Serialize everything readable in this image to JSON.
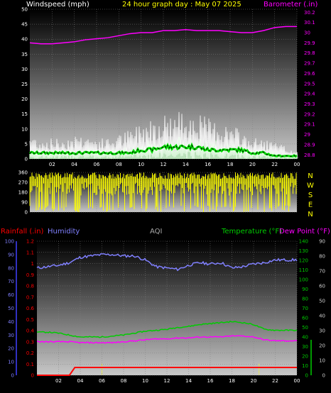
{
  "title": "24 hour graph day : May 07 2025",
  "colors": {
    "windspeed": "#ffffff",
    "wind_avg": "#00dd00",
    "wind_avg_dash": "#000000",
    "gust_fill": "#b6f0b6",
    "barometer": "#ff00ff",
    "direction": "#ffff00",
    "rainfall": "#ff0000",
    "humidity": "#8080ff",
    "aqi": "#aaaaaa",
    "temperature": "#00cc00",
    "dewpoint": "#ff00ff",
    "title": "#ffff00",
    "day_marker": "#ffff00"
  },
  "chart_data": [
    {
      "type": "line",
      "title": "24 hour graph day : May 07 2025",
      "left_label": "Windspeed (mph)",
      "right_label": "Barometer (.in)",
      "x_ticks": [
        "02",
        "04",
        "06",
        "08",
        "10",
        "12",
        "14",
        "16",
        "18",
        "20",
        "22",
        "00"
      ],
      "left_ticks": [
        "0",
        "5",
        "10",
        "15",
        "20",
        "25",
        "30",
        "35",
        "40",
        "45",
        "50"
      ],
      "left_range": [
        0,
        50
      ],
      "right_ticks": [
        "28.8",
        "28.9",
        "29",
        "29.1",
        "29.2",
        "29.3",
        "29.4",
        "29.5",
        "29.6",
        "29.7",
        "29.8",
        "29.9",
        "30",
        "30.1",
        "30.2"
      ],
      "right_range": [
        28.76,
        30.23
      ],
      "grid": true,
      "x_hours": [
        0,
        1,
        2,
        3,
        4,
        5,
        6,
        7,
        8,
        9,
        10,
        11,
        12,
        13,
        14,
        15,
        16,
        17,
        18,
        19,
        20,
        21,
        22,
        23,
        24
      ],
      "series": [
        {
          "name": "Windspeed (mph)",
          "axis": "left",
          "style": "spiky",
          "values": [
            6,
            5,
            5,
            5,
            6,
            6,
            5,
            5,
            6,
            7,
            9,
            10,
            11,
            11,
            12,
            11,
            10,
            9,
            8,
            7,
            5,
            5,
            4,
            3,
            2
          ]
        },
        {
          "axis": "left",
          "style": "dashed",
          "values": [
            2,
            2,
            2,
            2,
            2,
            2,
            2,
            2,
            2,
            2,
            3,
            3,
            4,
            4,
            4,
            4,
            3,
            3,
            3,
            3,
            2,
            2,
            1,
            1,
            1
          ]
        },
        {
          "name": "Barometer (.in)",
          "axis": "right",
          "values": [
            29.9,
            29.89,
            29.89,
            29.9,
            29.91,
            29.93,
            29.94,
            29.95,
            29.97,
            29.99,
            30.0,
            30.0,
            30.02,
            30.02,
            30.03,
            30.02,
            30.02,
            30.02,
            30.01,
            30.0,
            30.0,
            30.02,
            30.05,
            30.06,
            30.06
          ]
        }
      ]
    },
    {
      "type": "scatter",
      "title": "",
      "left_ticks": [
        "0",
        "90",
        "180",
        "270",
        "360"
      ],
      "left_range": [
        0,
        360
      ],
      "right_ticks": [
        "N",
        "W",
        "S",
        "E",
        "N"
      ],
      "grid": true,
      "series": [
        {
          "name": "Wind direction",
          "x": [
            0,
            24
          ],
          "values_min": [
            10,
            10
          ],
          "values_max": [
            340,
            340
          ]
        }
      ]
    },
    {
      "type": "line",
      "title": "",
      "rainfall_label": "Rainfall (.in)",
      "humidity_label": "Humidity",
      "aqi_label": "AQI",
      "temperature_label": "Temperature (°F)",
      "dewpoint_label": "Dew Point (°F)",
      "x_ticks": [
        "02",
        "04",
        "06",
        "08",
        "10",
        "12",
        "14",
        "16",
        "18",
        "20",
        "22",
        "00"
      ],
      "rain_ticks": [
        "0",
        "0.1",
        "0.2",
        "0.3",
        "0.4",
        "0.5",
        "0.6",
        "0.7",
        "0.8",
        "0.9",
        "1",
        "1.1",
        "1.2"
      ],
      "rain_range": [
        0,
        1.2
      ],
      "humidity_ticks": [
        "0",
        "10",
        "20",
        "30",
        "40",
        "50",
        "60",
        "70",
        "80",
        "90",
        "100"
      ],
      "humidity_range": [
        0,
        100
      ],
      "temp_ticks": [
        "0",
        "10",
        "20",
        "30",
        "40",
        "50",
        "60",
        "70",
        "80",
        "90",
        "100",
        "110",
        "120",
        "130",
        "140"
      ],
      "temp_range": [
        0,
        140
      ],
      "aqi_ticks": [
        "0",
        "10",
        "20",
        "30",
        "40",
        "50",
        "60",
        "70",
        "80",
        "90"
      ],
      "aqi_range": [
        0,
        90
      ],
      "grid": true,
      "x_hours": [
        0,
        1,
        2,
        3,
        4,
        5,
        6,
        7,
        8,
        9,
        10,
        11,
        12,
        13,
        14,
        15,
        16,
        17,
        18,
        19,
        20,
        21,
        22,
        23,
        24
      ],
      "day_markers": [
        6,
        20.5
      ],
      "series": [
        {
          "name": "Rainfall (.in)",
          "axis": "rain",
          "x": [
            0,
            3,
            3.5,
            24
          ],
          "values": [
            0,
            0,
            0.07,
            0.07
          ]
        },
        {
          "name": "Humidity",
          "axis": "humidity",
          "values": [
            80,
            81,
            82,
            84,
            88,
            89,
            90,
            90,
            89,
            89,
            86,
            81,
            80,
            79,
            82,
            84,
            83,
            84,
            80,
            81,
            83,
            84,
            86,
            86,
            86
          ]
        },
        {
          "name": "Temperature (°F)",
          "axis": "temp",
          "values": [
            45,
            45,
            44,
            42,
            40,
            40,
            40,
            41,
            42,
            44,
            46,
            47,
            48,
            50,
            51,
            53,
            54,
            55,
            56,
            55,
            53,
            48,
            47,
            47,
            47
          ]
        },
        {
          "name": "Dew Point (°F)",
          "axis": "temp",
          "values": [
            35,
            35,
            35,
            35,
            34,
            34,
            34,
            34,
            35,
            36,
            37,
            38,
            38,
            39,
            39,
            40,
            40,
            40,
            41,
            41,
            40,
            37,
            36,
            36,
            36
          ]
        }
      ]
    }
  ]
}
